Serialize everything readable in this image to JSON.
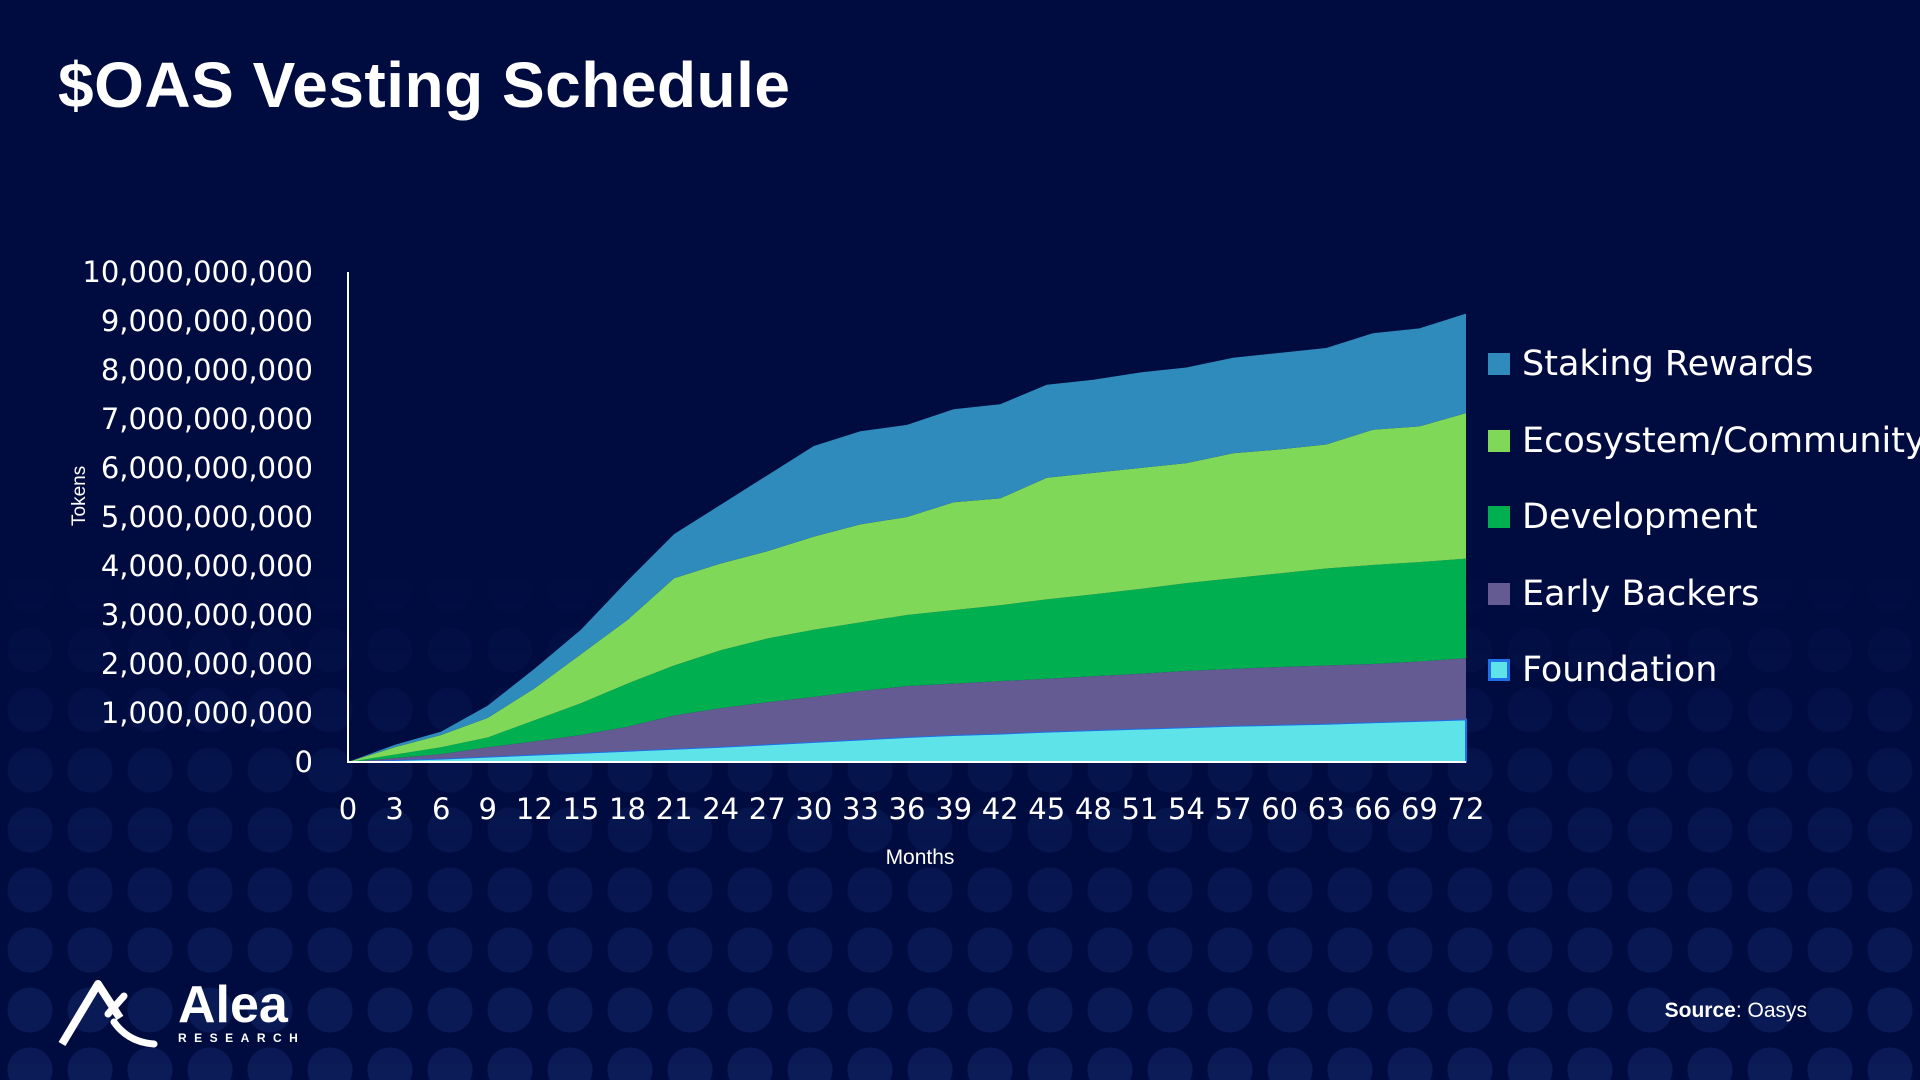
{
  "title": "$OAS Vesting Schedule",
  "logo": {
    "name": "Alea",
    "sub": "RESEARCH"
  },
  "source": {
    "label": "Source",
    "value": ": Oasys"
  },
  "chart_data": {
    "type": "area",
    "stacked": true,
    "xlabel": "Months",
    "ylabel": "Tokens",
    "x": [
      0,
      3,
      6,
      9,
      12,
      15,
      18,
      21,
      24,
      27,
      30,
      33,
      36,
      39,
      42,
      45,
      48,
      51,
      54,
      57,
      60,
      63,
      66,
      69,
      72
    ],
    "xlim": [
      0,
      72
    ],
    "ylim": [
      0,
      10000000000
    ],
    "yticks": [
      0,
      1000000000,
      2000000000,
      3000000000,
      4000000000,
      5000000000,
      6000000000,
      7000000000,
      8000000000,
      9000000000,
      10000000000
    ],
    "ytick_labels": [
      "0",
      "1,000,000,000",
      "2,000,000,000",
      "3,000,000,000",
      "4,000,000,000",
      "5,000,000,000",
      "6,000,000,000",
      "7,000,000,000",
      "8,000,000,000",
      "9,000,000,000",
      "10,000,000,000"
    ],
    "grid": false,
    "legend_placement": "right",
    "series": [
      {
        "name": "Foundation",
        "color": "#5ee3e9",
        "border": "#1e6fe8",
        "values": [
          0,
          40000000,
          70000000,
          110000000,
          150000000,
          190000000,
          230000000,
          270000000,
          310000000,
          360000000,
          410000000,
          460000000,
          510000000,
          550000000,
          580000000,
          620000000,
          650000000,
          680000000,
          710000000,
          740000000,
          760000000,
          780000000,
          810000000,
          840000000,
          870000000
        ]
      },
      {
        "name": "Early Backers",
        "color": "#635b92",
        "values": [
          0,
          40000000,
          90000000,
          190000000,
          270000000,
          360000000,
          490000000,
          680000000,
          790000000,
          860000000,
          920000000,
          990000000,
          1040000000,
          1050000000,
          1070000000,
          1080000000,
          1100000000,
          1120000000,
          1150000000,
          1160000000,
          1180000000,
          1190000000,
          1190000000,
          1210000000,
          1250000000
        ]
      },
      {
        "name": "Development",
        "color": "#00b050",
        "values": [
          0,
          70000000,
          140000000,
          200000000,
          430000000,
          650000000,
          880000000,
          1020000000,
          1180000000,
          1300000000,
          1370000000,
          1400000000,
          1450000000,
          1500000000,
          1550000000,
          1620000000,
          1670000000,
          1730000000,
          1790000000,
          1850000000,
          1910000000,
          1980000000,
          2020000000,
          2030000000,
          2030000000
        ]
      },
      {
        "name": "Ecosystem/Community",
        "color": "#80d858",
        "values": [
          0,
          150000000,
          250000000,
          400000000,
          650000000,
          1000000000,
          1300000000,
          1780000000,
          1770000000,
          1780000000,
          1900000000,
          2000000000,
          2000000000,
          2200000000,
          2180000000,
          2480000000,
          2480000000,
          2470000000,
          2450000000,
          2550000000,
          2530000000,
          2530000000,
          2760000000,
          2770000000,
          2970000000
        ]
      },
      {
        "name": "Staking Rewards",
        "color": "#2e8bbb",
        "values": [
          0,
          50000000,
          70000000,
          250000000,
          400000000,
          500000000,
          800000000,
          900000000,
          1200000000,
          1550000000,
          1850000000,
          1900000000,
          1880000000,
          1900000000,
          1920000000,
          1900000000,
          1900000000,
          1950000000,
          1950000000,
          1950000000,
          1970000000,
          1970000000,
          1970000000,
          2000000000,
          2030000000
        ]
      }
    ]
  }
}
